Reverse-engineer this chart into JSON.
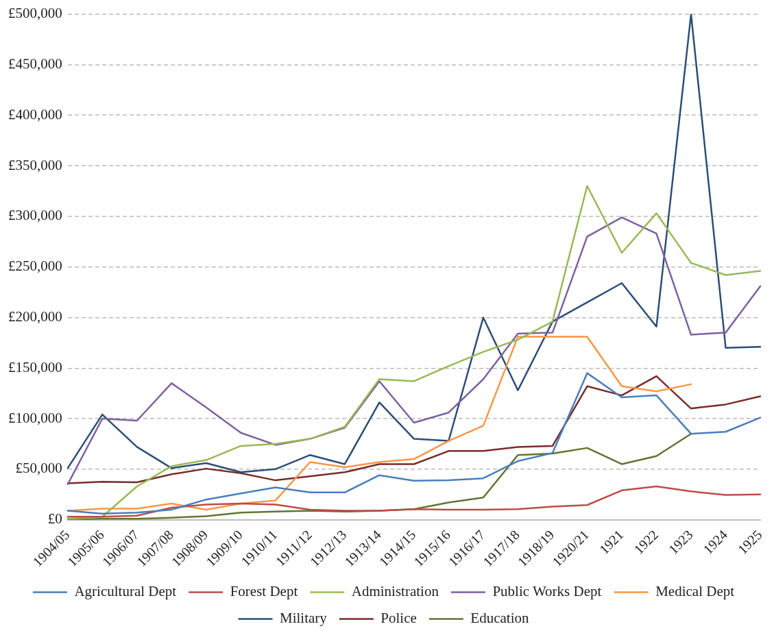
{
  "chart_data": {
    "type": "line",
    "categories": [
      "1904/05",
      "1905/06",
      "1906/07",
      "1907/08",
      "1908/09",
      "1909/10",
      "1910/11",
      "1911/12",
      "1912/13",
      "1913/14",
      "1914/15",
      "1915/16",
      "1916/17",
      "1917/18",
      "1918/19",
      "1920/21",
      "1921",
      "1922",
      "1923",
      "1924",
      "1925"
    ],
    "series": [
      {
        "name": "Agricultural Dept",
        "color": "#4a7ebb",
        "values": [
          9000,
          6000,
          7000,
          10000,
          20000,
          26000,
          32000,
          27000,
          27000,
          44000,
          38500,
          39000,
          41000,
          58000,
          66000,
          145000,
          121000,
          123000,
          85000,
          87000,
          101000
        ]
      },
      {
        "name": "Forest Dept",
        "color": "#be4b48",
        "values": [
          3000,
          3000,
          4000,
          12000,
          15000,
          16000,
          15000,
          10000,
          9000,
          9000,
          10500,
          10000,
          10000,
          10500,
          13000,
          14500,
          29000,
          33000,
          28000,
          24500,
          25000
        ]
      },
      {
        "name": "Administration",
        "color": "#98b954",
        "values": [
          1000,
          3000,
          33000,
          53000,
          59000,
          73000,
          75000,
          80000,
          92000,
          139000,
          137000,
          152000,
          166000,
          178000,
          196000,
          330000,
          264000,
          303000,
          254000,
          242000,
          246000
        ]
      },
      {
        "name": "Public Works Dept",
        "color": "#7d60a0",
        "values": [
          35000,
          100000,
          98000,
          135000,
          111000,
          86000,
          74000,
          80000,
          91000,
          137000,
          96000,
          106000,
          139000,
          184000,
          185000,
          280000,
          299000,
          283000,
          183000,
          185000,
          231000
        ]
      },
      {
        "name": "Medical Dept",
        "color": "#f79646",
        "values": [
          9000,
          11000,
          11000,
          16000,
          10000,
          16000,
          19000,
          57000,
          52000,
          57000,
          60000,
          78000,
          93000,
          181000,
          181000,
          181000,
          132000,
          127000,
          134000,
          null,
          null
        ]
      },
      {
        "name": "Military",
        "color": "#2c4d75",
        "values": [
          51000,
          104000,
          72000,
          51000,
          56000,
          47000,
          50000,
          64000,
          55000,
          116000,
          80000,
          78000,
          200000,
          128000,
          196000,
          215000,
          234000,
          191000,
          500000,
          170000,
          171000
        ]
      },
      {
        "name": "Police",
        "color": "#772c2a",
        "values": [
          36000,
          37500,
          37000,
          45000,
          50500,
          46000,
          39000,
          43000,
          47000,
          55000,
          55000,
          68000,
          68000,
          72000,
          73000,
          132000,
          123000,
          142000,
          110000,
          114000,
          122000
        ]
      },
      {
        "name": "Education",
        "color": "#5f7530",
        "values": [
          0,
          1000,
          1000,
          2000,
          3500,
          7000,
          8000,
          9000,
          8000,
          9000,
          10500,
          17000,
          22000,
          64000,
          65500,
          71000,
          55000,
          63000,
          85000,
          null,
          null
        ]
      }
    ],
    "ylim": [
      0,
      500000
    ],
    "yticks": [
      {
        "value": 0,
        "label": "£0"
      },
      {
        "value": 50000,
        "label": "£50,000"
      },
      {
        "value": 100000,
        "label": "£100,000"
      },
      {
        "value": 150000,
        "label": "£150,000"
      },
      {
        "value": 200000,
        "label": "£200,000"
      },
      {
        "value": 250000,
        "label": "£250,000"
      },
      {
        "value": 300000,
        "label": "£300,000"
      },
      {
        "value": 350000,
        "label": "£350,000"
      },
      {
        "value": 400000,
        "label": "£400,000"
      },
      {
        "value": 450000,
        "label": "£450,000"
      },
      {
        "value": 500000,
        "label": "£500,000"
      }
    ],
    "grid": "y",
    "legend": "bottom",
    "marker": "none",
    "line_style": "solid"
  }
}
